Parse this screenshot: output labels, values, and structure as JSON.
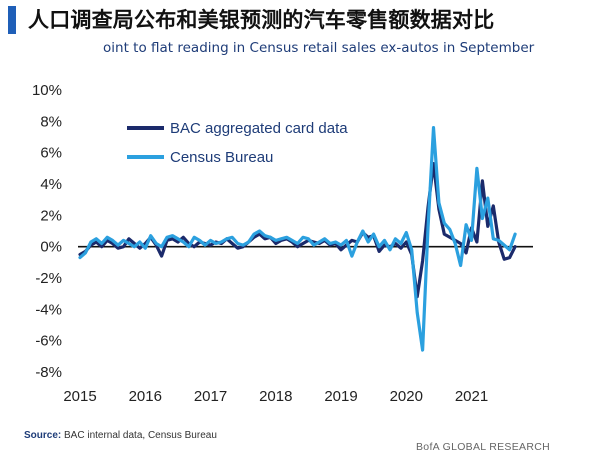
{
  "header": {
    "title": "人口调查局公布和美银预测的汽车零售额数据对比",
    "subtitle": "oint to flat reading in Census retail sales ex-autos in September"
  },
  "footer": {
    "source_label": "Source:",
    "source_text": "BAC internal data, Census Bureau",
    "brand": "BofA GLOBAL RESEARCH"
  },
  "colors": {
    "accent_bar": "#1f5fb8",
    "bac_series": "#1b2a6b",
    "census_series": "#2ba0df",
    "zero_line": "#111111"
  },
  "chart_data": {
    "type": "line",
    "title": "人口调查局公布和美银预测的汽车零售额数据对比",
    "subtitle": "oint to flat reading in Census retail sales ex-autos in September",
    "xlabel": "",
    "ylabel": "",
    "ylim": [
      -8,
      10
    ],
    "xlim": [
      2015,
      2021.85
    ],
    "y_ticks": [
      "10%",
      "8%",
      "6%",
      "4%",
      "2%",
      "0%",
      "-2%",
      "-4%",
      "-6%",
      "-8%"
    ],
    "y_tick_values": [
      10,
      8,
      6,
      4,
      2,
      0,
      -2,
      -4,
      -6,
      -8
    ],
    "x_ticks": [
      "2015",
      "2016",
      "2017",
      "2018",
      "2019",
      "2020",
      "2021"
    ],
    "x_tick_values": [
      2015,
      2016,
      2017,
      2018,
      2019,
      2020,
      2021
    ],
    "legend_position": "top-left",
    "grid": false,
    "x": [
      2015.0,
      2015.083,
      2015.167,
      2015.25,
      2015.333,
      2015.417,
      2015.5,
      2015.583,
      2015.667,
      2015.75,
      2015.833,
      2015.917,
      2016.0,
      2016.083,
      2016.167,
      2016.25,
      2016.333,
      2016.417,
      2016.5,
      2016.583,
      2016.667,
      2016.75,
      2016.833,
      2016.917,
      2017.0,
      2017.083,
      2017.167,
      2017.25,
      2017.333,
      2017.417,
      2017.5,
      2017.583,
      2017.667,
      2017.75,
      2017.833,
      2017.917,
      2018.0,
      2018.083,
      2018.167,
      2018.25,
      2018.333,
      2018.417,
      2018.5,
      2018.583,
      2018.667,
      2018.75,
      2018.833,
      2018.917,
      2019.0,
      2019.083,
      2019.167,
      2019.25,
      2019.333,
      2019.417,
      2019.5,
      2019.583,
      2019.667,
      2019.75,
      2019.833,
      2019.917,
      2020.0,
      2020.083,
      2020.167,
      2020.25,
      2020.333,
      2020.417,
      2020.5,
      2020.583,
      2020.667,
      2020.75,
      2020.833,
      2020.917,
      2021.0,
      2021.083,
      2021.167,
      2021.25,
      2021.333,
      2021.417,
      2021.5,
      2021.583,
      2021.667
    ],
    "series": [
      {
        "name": "BAC aggregated card data",
        "values": [
          -0.5,
          -0.3,
          0.1,
          0.3,
          0.0,
          0.4,
          0.2,
          -0.1,
          0.0,
          0.5,
          0.2,
          -0.1,
          0.2,
          0.6,
          0.1,
          -0.6,
          0.4,
          0.5,
          0.3,
          0.6,
          0.2,
          0.0,
          0.3,
          0.2,
          0.1,
          0.3,
          0.2,
          0.5,
          0.2,
          -0.1,
          0.0,
          0.3,
          0.6,
          0.8,
          0.5,
          0.6,
          0.2,
          0.4,
          0.5,
          0.3,
          0.0,
          0.2,
          0.4,
          0.3,
          0.2,
          0.4,
          0.1,
          0.2,
          -0.2,
          0.1,
          0.4,
          0.3,
          0.9,
          0.6,
          0.7,
          -0.3,
          0.1,
          0.0,
          0.2,
          -0.1,
          0.3,
          -0.5,
          -3.2,
          -0.9,
          2.5,
          5.3,
          2.4,
          0.8,
          0.6,
          0.4,
          0.2,
          -0.4,
          1.2,
          0.3,
          4.2,
          1.3,
          2.6,
          0.3,
          -0.8,
          -0.7,
          0.0
        ]
      },
      {
        "name": "Census Bureau",
        "values": [
          -0.7,
          -0.4,
          0.3,
          0.5,
          0.2,
          0.6,
          0.4,
          0.1,
          0.4,
          0.2,
          0.0,
          0.3,
          -0.1,
          0.7,
          0.2,
          0.0,
          0.6,
          0.7,
          0.5,
          0.3,
          0.0,
          0.6,
          0.4,
          0.1,
          0.4,
          0.2,
          0.3,
          0.5,
          0.6,
          0.2,
          0.1,
          0.3,
          0.8,
          1.0,
          0.7,
          0.6,
          0.4,
          0.5,
          0.6,
          0.4,
          0.2,
          0.6,
          0.5,
          0.1,
          0.3,
          0.5,
          0.2,
          0.3,
          0.1,
          0.4,
          -0.6,
          0.3,
          1.0,
          0.3,
          0.8,
          0.0,
          0.4,
          -0.2,
          0.5,
          0.2,
          0.9,
          -0.2,
          -4.2,
          -6.6,
          1.2,
          7.6,
          2.8,
          1.5,
          1.1,
          0.2,
          -1.2,
          1.4,
          0.4,
          5.0,
          1.8,
          3.1,
          0.5,
          0.4,
          0.1,
          -0.2,
          0.8
        ]
      }
    ]
  }
}
